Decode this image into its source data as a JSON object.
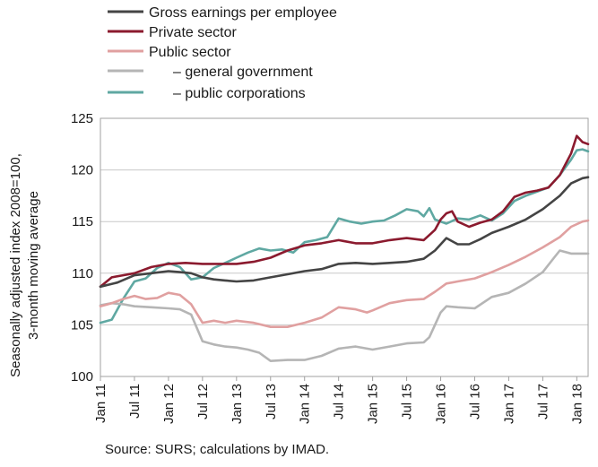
{
  "chart_data": {
    "type": "line",
    "title": "",
    "xlabel": "",
    "ylabel_lines": [
      "Seasonally adjusted index 2008=100,",
      "3-month moving average"
    ],
    "ylim": [
      100,
      125
    ],
    "yticks": [
      100,
      105,
      110,
      115,
      120,
      125
    ],
    "grid": "horizontal",
    "legend_position": "top-left",
    "x_tick_labels": [
      "Jan 11",
      "Jul 11",
      "Jan 12",
      "Jul 12",
      "Jan 13",
      "Jul 13",
      "Jan 14",
      "Jul 14",
      "Jan 15",
      "Jul 15",
      "Jan 16",
      "Jul 16",
      "Jan 17",
      "Jul 17",
      "Jan 18"
    ],
    "x_tick_months": [
      0,
      6,
      12,
      18,
      24,
      30,
      36,
      42,
      48,
      54,
      60,
      66,
      72,
      78,
      84
    ],
    "x_range_months": [
      0,
      86
    ],
    "x_start": "Jan 11",
    "series": [
      {
        "name": "Gross earnings per employee",
        "color": "#444444",
        "points": [
          [
            0,
            108.7
          ],
          [
            3,
            109.1
          ],
          [
            6,
            109.8
          ],
          [
            9,
            110.0
          ],
          [
            12,
            110.2
          ],
          [
            14,
            110.1
          ],
          [
            16,
            110.0
          ],
          [
            18,
            109.6
          ],
          [
            20,
            109.4
          ],
          [
            22,
            109.3
          ],
          [
            24,
            109.2
          ],
          [
            27,
            109.3
          ],
          [
            30,
            109.6
          ],
          [
            33,
            109.9
          ],
          [
            36,
            110.2
          ],
          [
            39,
            110.4
          ],
          [
            42,
            110.9
          ],
          [
            45,
            111.0
          ],
          [
            48,
            110.9
          ],
          [
            51,
            111.0
          ],
          [
            54,
            111.1
          ],
          [
            57,
            111.4
          ],
          [
            59,
            112.2
          ],
          [
            61,
            113.4
          ],
          [
            63,
            112.8
          ],
          [
            65,
            112.8
          ],
          [
            67,
            113.3
          ],
          [
            69,
            113.9
          ],
          [
            72,
            114.5
          ],
          [
            75,
            115.2
          ],
          [
            78,
            116.2
          ],
          [
            81,
            117.5
          ],
          [
            83,
            118.7
          ],
          [
            85,
            119.2
          ],
          [
            86,
            119.3
          ]
        ]
      },
      {
        "name": "Private sector",
        "color": "#8b1a2e",
        "points": [
          [
            0,
            108.7
          ],
          [
            2,
            109.6
          ],
          [
            4,
            109.8
          ],
          [
            6,
            110.0
          ],
          [
            9,
            110.6
          ],
          [
            12,
            110.9
          ],
          [
            15,
            111.0
          ],
          [
            18,
            110.9
          ],
          [
            21,
            110.9
          ],
          [
            24,
            110.9
          ],
          [
            27,
            111.1
          ],
          [
            30,
            111.5
          ],
          [
            33,
            112.2
          ],
          [
            36,
            112.7
          ],
          [
            39,
            112.9
          ],
          [
            42,
            113.2
          ],
          [
            45,
            112.9
          ],
          [
            48,
            112.9
          ],
          [
            51,
            113.2
          ],
          [
            54,
            113.4
          ],
          [
            57,
            113.2
          ],
          [
            59,
            114.2
          ],
          [
            60,
            115.2
          ],
          [
            61,
            115.8
          ],
          [
            62,
            116.0
          ],
          [
            63,
            115.0
          ],
          [
            65,
            114.5
          ],
          [
            67,
            114.9
          ],
          [
            69,
            115.2
          ],
          [
            71,
            116.0
          ],
          [
            73,
            117.4
          ],
          [
            75,
            117.8
          ],
          [
            77,
            118.0
          ],
          [
            79,
            118.3
          ],
          [
            81,
            119.5
          ],
          [
            83,
            121.6
          ],
          [
            84,
            123.3
          ],
          [
            85,
            122.7
          ],
          [
            86,
            122.5
          ]
        ]
      },
      {
        "name": "Public sector",
        "color": "#e0a0a0",
        "points": [
          [
            0,
            106.8
          ],
          [
            2,
            107.1
          ],
          [
            4,
            107.5
          ],
          [
            6,
            107.8
          ],
          [
            8,
            107.5
          ],
          [
            10,
            107.6
          ],
          [
            12,
            108.1
          ],
          [
            14,
            107.9
          ],
          [
            16,
            107.0
          ],
          [
            18,
            105.2
          ],
          [
            20,
            105.4
          ],
          [
            22,
            105.2
          ],
          [
            24,
            105.4
          ],
          [
            27,
            105.2
          ],
          [
            30,
            104.8
          ],
          [
            33,
            104.8
          ],
          [
            36,
            105.2
          ],
          [
            39,
            105.7
          ],
          [
            42,
            106.7
          ],
          [
            45,
            106.5
          ],
          [
            47,
            106.2
          ],
          [
            48,
            106.4
          ],
          [
            51,
            107.1
          ],
          [
            54,
            107.4
          ],
          [
            57,
            107.5
          ],
          [
            59,
            108.2
          ],
          [
            61,
            109.0
          ],
          [
            63,
            109.2
          ],
          [
            66,
            109.5
          ],
          [
            69,
            110.1
          ],
          [
            72,
            110.8
          ],
          [
            75,
            111.6
          ],
          [
            78,
            112.5
          ],
          [
            81,
            113.5
          ],
          [
            83,
            114.5
          ],
          [
            85,
            115.0
          ],
          [
            86,
            115.1
          ]
        ]
      },
      {
        "name": "– general government",
        "color": "#b5b5b5",
        "points": [
          [
            0,
            106.9
          ],
          [
            2,
            107.1
          ],
          [
            4,
            107.0
          ],
          [
            6,
            106.8
          ],
          [
            9,
            106.7
          ],
          [
            12,
            106.6
          ],
          [
            14,
            106.5
          ],
          [
            16,
            106.0
          ],
          [
            18,
            103.4
          ],
          [
            20,
            103.1
          ],
          [
            22,
            102.9
          ],
          [
            24,
            102.8
          ],
          [
            26,
            102.6
          ],
          [
            28,
            102.3
          ],
          [
            30,
            101.5
          ],
          [
            33,
            101.6
          ],
          [
            36,
            101.6
          ],
          [
            39,
            102.0
          ],
          [
            42,
            102.7
          ],
          [
            45,
            102.9
          ],
          [
            47,
            102.7
          ],
          [
            48,
            102.6
          ],
          [
            51,
            102.9
          ],
          [
            54,
            103.2
          ],
          [
            57,
            103.3
          ],
          [
            58,
            103.8
          ],
          [
            60,
            106.2
          ],
          [
            61,
            106.8
          ],
          [
            63,
            106.7
          ],
          [
            66,
            106.6
          ],
          [
            69,
            107.7
          ],
          [
            72,
            108.1
          ],
          [
            75,
            109.0
          ],
          [
            78,
            110.1
          ],
          [
            80,
            111.5
          ],
          [
            81,
            112.2
          ],
          [
            83,
            111.9
          ],
          [
            85,
            111.9
          ],
          [
            86,
            111.9
          ]
        ]
      },
      {
        "name": "– public corporations",
        "color": "#5fa8a2",
        "points": [
          [
            0,
            105.2
          ],
          [
            2,
            105.5
          ],
          [
            4,
            107.5
          ],
          [
            6,
            109.2
          ],
          [
            8,
            109.5
          ],
          [
            10,
            110.5
          ],
          [
            12,
            111.0
          ],
          [
            14,
            110.6
          ],
          [
            16,
            109.4
          ],
          [
            18,
            109.6
          ],
          [
            20,
            110.5
          ],
          [
            22,
            111.0
          ],
          [
            24,
            111.5
          ],
          [
            26,
            112.0
          ],
          [
            28,
            112.4
          ],
          [
            30,
            112.2
          ],
          [
            32,
            112.3
          ],
          [
            34,
            112.0
          ],
          [
            36,
            113.0
          ],
          [
            38,
            113.2
          ],
          [
            40,
            113.5
          ],
          [
            42,
            115.3
          ],
          [
            44,
            115.0
          ],
          [
            46,
            114.8
          ],
          [
            48,
            115.0
          ],
          [
            50,
            115.1
          ],
          [
            52,
            115.6
          ],
          [
            54,
            116.2
          ],
          [
            56,
            116.0
          ],
          [
            57,
            115.5
          ],
          [
            58,
            116.3
          ],
          [
            59,
            115.2
          ],
          [
            61,
            114.8
          ],
          [
            63,
            115.3
          ],
          [
            65,
            115.2
          ],
          [
            67,
            115.6
          ],
          [
            69,
            115.1
          ],
          [
            71,
            115.8
          ],
          [
            73,
            117.0
          ],
          [
            75,
            117.5
          ],
          [
            77,
            117.9
          ],
          [
            79,
            118.3
          ],
          [
            81,
            119.5
          ],
          [
            83,
            121.0
          ],
          [
            84,
            121.9
          ],
          [
            85,
            122.0
          ],
          [
            86,
            121.8
          ]
        ]
      }
    ]
  },
  "source": "Source: SURS; calculations by IMAD."
}
